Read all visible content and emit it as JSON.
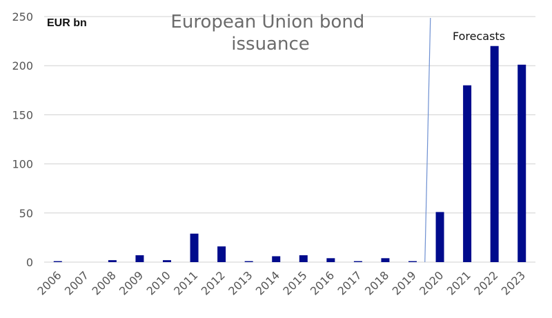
{
  "chart_data": {
    "type": "bar",
    "title": "European Union bond issuance",
    "unit_label": "EUR bn",
    "annotation": "Forecasts",
    "forecast_start": "2020",
    "categories": [
      "2006",
      "2007",
      "2008",
      "2009",
      "2010",
      "2011",
      "2012",
      "2013",
      "2014",
      "2015",
      "2016",
      "2017",
      "2018",
      "2019",
      "2020",
      "2021",
      "2022",
      "2023"
    ],
    "values": [
      1,
      0,
      2,
      7,
      2,
      29,
      16,
      1,
      6,
      7,
      4,
      1,
      4,
      1,
      51,
      180,
      220,
      201
    ],
    "ylim": [
      0,
      250
    ],
    "yticks": [
      0,
      50,
      100,
      150,
      200,
      250
    ],
    "grid": true,
    "bar_color": "#000b8c",
    "divider_color": "#6d8fd1",
    "legend": "none"
  }
}
